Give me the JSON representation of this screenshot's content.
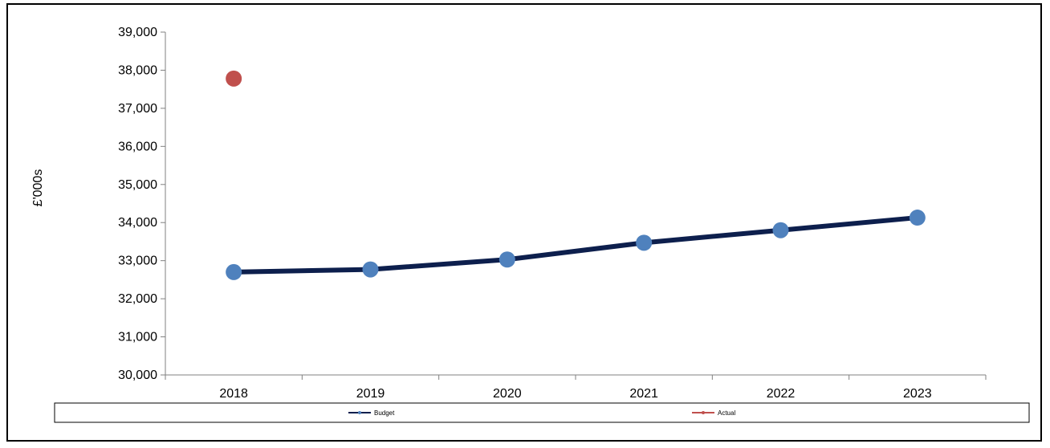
{
  "chart_data": {
    "type": "line",
    "title": "",
    "xlabel": "",
    "ylabel": "£'000s",
    "categories": [
      "2018",
      "2019",
      "2020",
      "2021",
      "2022",
      "2023"
    ],
    "ylim": [
      30000,
      39000
    ],
    "yticks": [
      30000,
      31000,
      32000,
      33000,
      34000,
      35000,
      36000,
      37000,
      38000,
      39000
    ],
    "ytick_labels": [
      "30,000",
      "31,000",
      "32,000",
      "33,000",
      "34,000",
      "35,000",
      "36,000",
      "37,000",
      "38,000",
      "39,000"
    ],
    "grid": false,
    "legend_position": "bottom",
    "series": [
      {
        "name": "Budget",
        "values": [
          32700,
          32770,
          33030,
          33470,
          33800,
          34130
        ],
        "line_color": "#0d1f4d",
        "marker_color": "#4f81bd"
      },
      {
        "name": "Actual",
        "values": [
          37780,
          null,
          null,
          null,
          null,
          null
        ],
        "line_color": "#c0504d",
        "marker_color": "#c0504d"
      }
    ]
  }
}
